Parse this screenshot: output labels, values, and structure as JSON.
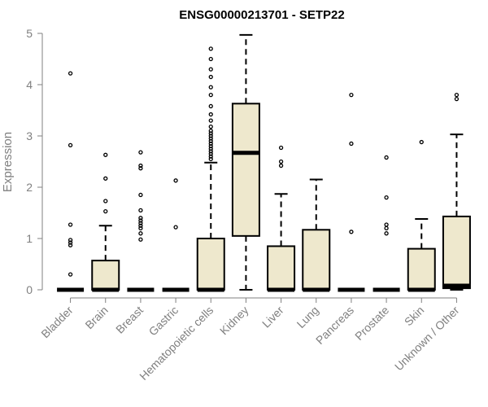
{
  "chart_data": {
    "type": "boxplot",
    "title": "ENSG00000213701 - SETP22",
    "ylabel": "Expression",
    "xlabel": "",
    "ylim": [
      0,
      5
    ],
    "yticks": [
      0,
      1,
      2,
      3,
      4,
      5
    ],
    "box_fill": "#EEE8CD",
    "categories": [
      "Bladder",
      "Brain",
      "Breast",
      "Gastric",
      "Hematopoietic cells",
      "Kidney",
      "Liver",
      "Lung",
      "Pancreas",
      "Prostate",
      "Skin",
      "Unknown / Other"
    ],
    "boxes": [
      {
        "q1": 0,
        "median": 0,
        "q3": 0,
        "whisker_low": 0,
        "whisker_high": 0,
        "outliers": [
          4.22,
          2.82,
          1.27,
          0.97,
          0.92,
          0.87,
          0.3
        ]
      },
      {
        "q1": 0,
        "median": 0,
        "q3": 0.57,
        "whisker_low": 0,
        "whisker_high": 1.25,
        "outliers": [
          2.63,
          2.17,
          1.73,
          1.53
        ]
      },
      {
        "q1": 0,
        "median": 0,
        "q3": 0,
        "whisker_low": 0,
        "whisker_high": 0,
        "outliers": [
          2.68,
          2.42,
          2.37,
          1.85,
          1.55,
          1.4,
          1.35,
          1.3,
          1.25,
          1.2,
          1.1,
          0.98
        ]
      },
      {
        "q1": 0,
        "median": 0,
        "q3": 0,
        "whisker_low": 0,
        "whisker_high": 0,
        "outliers": [
          2.13,
          1.22
        ]
      },
      {
        "q1": 0,
        "median": 0,
        "q3": 1.0,
        "whisker_low": 0,
        "whisker_high": 2.48,
        "outliers": [
          4.7,
          4.5,
          4.3,
          4.15,
          3.95,
          3.8,
          3.58,
          3.42,
          3.3,
          3.18,
          3.1,
          3.05,
          3.0,
          2.95,
          2.9,
          2.85,
          2.8,
          2.75,
          2.7,
          2.65,
          2.6,
          2.55
        ]
      },
      {
        "q1": 1.05,
        "median": 2.67,
        "q3": 3.63,
        "whisker_low": 0,
        "whisker_high": 4.97,
        "outliers": []
      },
      {
        "q1": 0,
        "median": 0,
        "q3": 0.85,
        "whisker_low": 0,
        "whisker_high": 1.87,
        "outliers": [
          2.77,
          2.5,
          2.42
        ]
      },
      {
        "q1": 0,
        "median": 0,
        "q3": 1.17,
        "whisker_low": 0,
        "whisker_high": 2.15,
        "outliers": []
      },
      {
        "q1": 0,
        "median": 0,
        "q3": 0,
        "whisker_low": 0,
        "whisker_high": 0,
        "outliers": [
          3.8,
          2.85,
          1.13
        ]
      },
      {
        "q1": 0,
        "median": 0,
        "q3": 0,
        "whisker_low": 0,
        "whisker_high": 0,
        "outliers": [
          2.58,
          1.8,
          1.27,
          1.2,
          1.1
        ]
      },
      {
        "q1": 0,
        "median": 0,
        "q3": 0.8,
        "whisker_low": 0,
        "whisker_high": 1.38,
        "outliers": [
          2.88
        ]
      },
      {
        "q1": 0.03,
        "median": 0.08,
        "q3": 1.43,
        "whisker_low": 0,
        "whisker_high": 3.03,
        "outliers": [
          3.8,
          3.72
        ]
      }
    ]
  }
}
